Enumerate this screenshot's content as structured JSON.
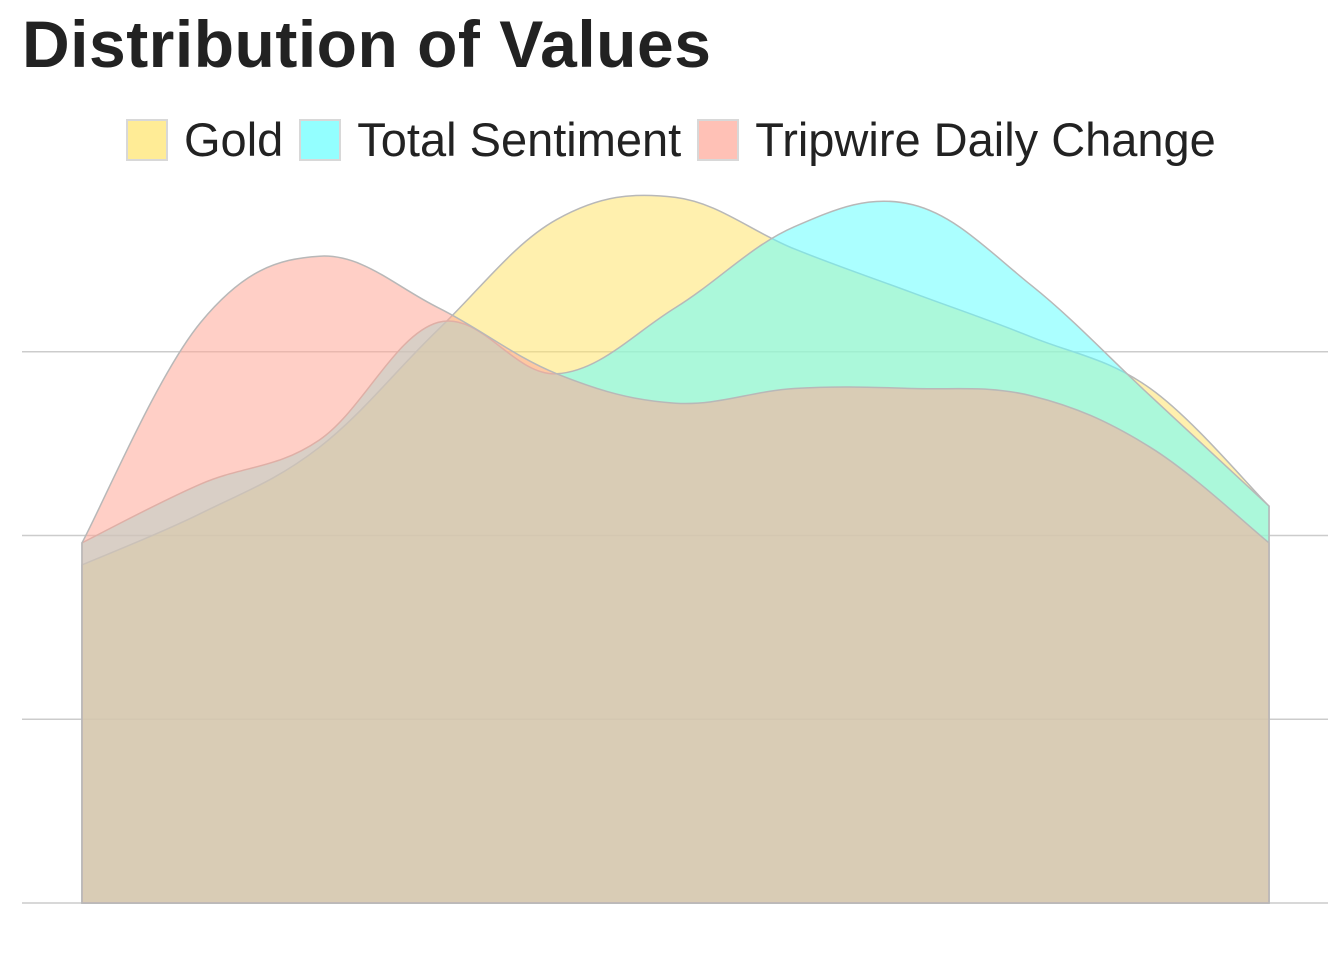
{
  "chart_data": {
    "type": "area",
    "title": "Distribution of Values",
    "xlabel": "",
    "ylabel": "",
    "ylim": [
      0,
      1
    ],
    "x": [
      0,
      0.1,
      0.2,
      0.3,
      0.4,
      0.5,
      0.6,
      0.7,
      0.8,
      0.9,
      1.0
    ],
    "legend_position": "top",
    "grid": true,
    "series": [
      {
        "name": "Gold",
        "color": "#FFE46B",
        "values": [
          0.46,
          0.53,
          0.62,
          0.78,
          0.93,
          0.96,
          0.89,
          0.83,
          0.77,
          0.7,
          0.54
        ]
      },
      {
        "name": "Total Sentiment",
        "color": "#66FFFF",
        "values": [
          0.49,
          0.57,
          0.63,
          0.79,
          0.72,
          0.81,
          0.92,
          0.95,
          0.84,
          0.69,
          0.54
        ]
      },
      {
        "name": "Tripwire Daily Change",
        "color": "#FFA898",
        "values": [
          0.49,
          0.79,
          0.88,
          0.81,
          0.72,
          0.68,
          0.7,
          0.7,
          0.69,
          0.62,
          0.49
        ]
      }
    ]
  }
}
